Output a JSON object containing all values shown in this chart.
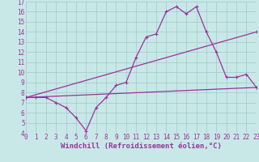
{
  "bg_color": "#c8e8e8",
  "grid_color": "#a0c8c8",
  "line_color": "#993399",
  "marker": "+",
  "ylim": [
    4,
    17
  ],
  "xlim": [
    0,
    23
  ],
  "yticks": [
    4,
    5,
    6,
    7,
    8,
    9,
    10,
    11,
    12,
    13,
    14,
    15,
    16,
    17
  ],
  "xticks": [
    0,
    1,
    2,
    3,
    4,
    5,
    6,
    7,
    8,
    9,
    10,
    11,
    12,
    13,
    14,
    15,
    16,
    17,
    18,
    19,
    20,
    21,
    22,
    23
  ],
  "curve1_x": [
    0,
    1,
    2,
    3,
    4,
    5,
    6,
    7,
    8,
    9,
    10,
    11,
    12,
    13,
    14,
    15,
    16,
    17,
    18,
    19,
    20,
    21,
    22,
    23
  ],
  "curve1_y": [
    7.5,
    7.5,
    7.5,
    7.0,
    6.5,
    5.5,
    4.2,
    6.5,
    7.5,
    8.7,
    9.0,
    11.5,
    13.5,
    13.8,
    16.0,
    16.5,
    15.8,
    16.5,
    14.0,
    12.0,
    9.5,
    9.5,
    9.8,
    8.5
  ],
  "curve2_x": [
    0,
    23
  ],
  "curve2_y": [
    7.5,
    14.0
  ],
  "curve3_x": [
    0,
    23
  ],
  "curve3_y": [
    7.5,
    8.5
  ],
  "tick_fontsize": 5.5,
  "xlabel": "Windchill (Refroidissement éolien,°C)",
  "xlabel_fontsize": 6.5,
  "xlabel_color": "#993399"
}
